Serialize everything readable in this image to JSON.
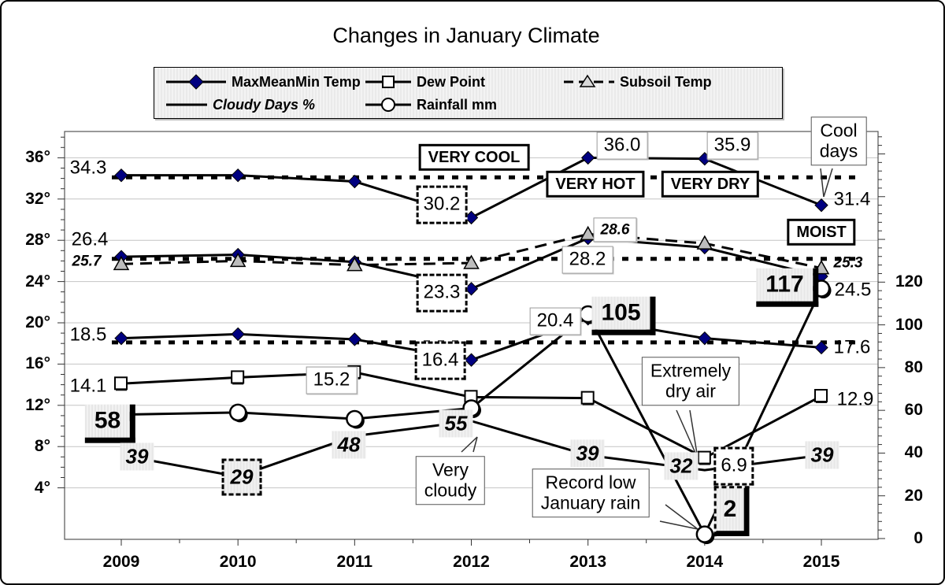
{
  "title": "Changes in January Climate",
  "legend": {
    "items": [
      {
        "label": "MaxMeanMin Temp",
        "marker": "diamond-icon"
      },
      {
        "label": "Dew Point",
        "marker": "square-icon"
      },
      {
        "label": "Subsoil Temp",
        "marker": "triangle-icon"
      },
      {
        "label": "Cloudy Days %",
        "marker": "line-icon"
      },
      {
        "label": "Rainfall mm",
        "marker": "circle-icon"
      }
    ]
  },
  "colors": {
    "max_temp_marker": "#000080",
    "subsoil_marker": "#bdbdbd",
    "line": "#000000",
    "grid": "#c4c4c4"
  },
  "chart_data": {
    "type": "line",
    "title": "Changes in January Climate",
    "x": [
      2009,
      2010,
      2011,
      2012,
      2013,
      2014,
      2015
    ],
    "left_axis": {
      "tick_labels": [
        "36°",
        "32°",
        "28°",
        "24°",
        "20°",
        "16°",
        "12°",
        "8°",
        "4°"
      ],
      "ticks": [
        36,
        32,
        28,
        24,
        20,
        16,
        12,
        8,
        4
      ],
      "unit": "°C"
    },
    "right_axis": {
      "tick_labels": [
        "120",
        "100",
        "80",
        "60",
        "40",
        "20",
        "0"
      ],
      "ticks": [
        120,
        100,
        80,
        60,
        40,
        20,
        0
      ],
      "unit": "% / mm"
    },
    "grid": "horizontal",
    "legend_position": "top",
    "series": [
      {
        "name": "Max Temp",
        "legend": "MaxMeanMin Temp",
        "axis": "left",
        "marker": "diamond",
        "dashed": false,
        "values": [
          34.3,
          34.3,
          33.7,
          30.2,
          36.0,
          35.9,
          31.4
        ]
      },
      {
        "name": "Mean Temp",
        "legend": "MaxMeanMin Temp",
        "axis": "left",
        "marker": "diamond",
        "dashed": false,
        "values": [
          26.4,
          26.6,
          25.9,
          23.3,
          28.2,
          27.3,
          24.5
        ]
      },
      {
        "name": "Min Temp",
        "legend": "MaxMeanMin Temp",
        "axis": "left",
        "marker": "diamond",
        "dashed": false,
        "values": [
          18.5,
          18.9,
          18.4,
          16.4,
          20.4,
          18.5,
          17.6
        ]
      },
      {
        "name": "Dew Point",
        "legend": "Dew Point",
        "axis": "left",
        "marker": "square",
        "dashed": false,
        "values": [
          14.1,
          14.7,
          15.2,
          12.8,
          12.7,
          6.9,
          12.9
        ]
      },
      {
        "name": "Subsoil Temp",
        "legend": "Subsoil Temp",
        "axis": "left",
        "marker": "triangle",
        "dashed": true,
        "values": [
          25.7,
          26.0,
          25.6,
          25.8,
          28.6,
          27.7,
          25.3
        ]
      },
      {
        "name": "Cloudy Days %",
        "legend": "Cloudy Days %",
        "axis": "right",
        "marker": "none",
        "dashed": false,
        "values": [
          39,
          29,
          48,
          55,
          39,
          32,
          39
        ]
      },
      {
        "name": "Rainfall mm",
        "legend": "Rainfall mm",
        "axis": "right",
        "marker": "circle",
        "dashed": false,
        "values": [
          58,
          59,
          56,
          61,
          105,
          2,
          117
        ]
      }
    ],
    "reference_lines": [
      {
        "axis": "left",
        "value": 34.1,
        "style": "bold-dotted"
      },
      {
        "axis": "left",
        "value": 26.2,
        "style": "bold-dotted"
      },
      {
        "axis": "left",
        "value": 18.1,
        "style": "bold-dotted"
      }
    ],
    "annotations": [
      {
        "text": "34.3",
        "cls": "plain",
        "x": 110,
        "y": 212
      },
      {
        "text": "26.4",
        "cls": "plain",
        "x": 112,
        "y": 303
      },
      {
        "text": "25.7",
        "cls": "small-bi",
        "x": 108,
        "y": 330
      },
      {
        "text": "18.5",
        "cls": "plain",
        "x": 110,
        "y": 424
      },
      {
        "text": "14.1",
        "cls": "plain",
        "x": 110,
        "y": 489
      },
      {
        "text": "58",
        "cls": "big-box",
        "x": 138,
        "y": 536
      },
      {
        "text": "39",
        "cls": "cloudy",
        "x": 172,
        "y": 578
      },
      {
        "text": "29",
        "cls": "cloudy cloudy-dashed",
        "x": 305,
        "y": 604
      },
      {
        "text": "48",
        "cls": "cloudy",
        "x": 441,
        "y": 563
      },
      {
        "text": "15.2",
        "cls": "white-box",
        "x": 419,
        "y": 481
      },
      {
        "text": "30.2",
        "cls": "dashed-box",
        "x": 559,
        "y": 258
      },
      {
        "text": "VERY COOL",
        "cls": "thick-box",
        "x": 600,
        "y": 198
      },
      {
        "text": "23.3",
        "cls": "dashed-box",
        "x": 559,
        "y": 370
      },
      {
        "text": "16.4",
        "cls": "dashed-box",
        "x": 557,
        "y": 456
      },
      {
        "text": "55",
        "cls": "cloudy",
        "x": 577,
        "y": 536
      },
      {
        "text": "Very\ncloudy",
        "cls": "callout",
        "x": 570,
        "y": 608,
        "pointer": [
          584,
          572,
          599,
          572,
          604,
          553
        ]
      },
      {
        "text": "VERY HOT",
        "cls": "thick-box",
        "x": 754,
        "y": 232
      },
      {
        "text": "36.0",
        "cls": "white-box",
        "x": 788,
        "y": 183
      },
      {
        "text": "28.6",
        "cls": "white-box bi",
        "x": 779,
        "y": 290
      },
      {
        "text": "28.2",
        "cls": "white-box",
        "x": 744,
        "y": 328
      },
      {
        "text": "20.4",
        "cls": "white-box",
        "x": 703,
        "y": 406
      },
      {
        "text": "105",
        "cls": "big-box",
        "x": 790,
        "y": 399
      },
      {
        "text": "39",
        "cls": "cloudy",
        "x": 744,
        "y": 574
      },
      {
        "text": "VERY DRY",
        "cls": "thick-box",
        "x": 900,
        "y": 232
      },
      {
        "text": "35.9",
        "cls": "white-box",
        "x": 928,
        "y": 183
      },
      {
        "text": "Extremely\ndry air",
        "cls": "callout",
        "x": 875,
        "y": 482,
        "pointer": [
          857,
          519,
          874,
          519,
          884,
          580
        ]
      },
      {
        "text": "32",
        "cls": "cloudy",
        "x": 863,
        "y": 590
      },
      {
        "text": "6.9",
        "cls": "dashed-box",
        "x": 930,
        "y": 590
      },
      {
        "text": "2",
        "cls": "big-box2",
        "x": 927,
        "y": 647
      },
      {
        "text": "Record low\nJanuary rain",
        "cls": "callout",
        "x": 748,
        "y": 624,
        "pointer": [
          843,
          639,
          836,
          660,
          884,
          670
        ]
      },
      {
        "text": "MOIST",
        "cls": "thick-box",
        "x": 1041,
        "y": 293
      },
      {
        "text": "Cool\ndays",
        "cls": "callout",
        "x": 1063,
        "y": 177,
        "pointer": [
          1040,
          212,
          1055,
          212,
          1044,
          248
        ]
      },
      {
        "text": "31.4",
        "cls": "plain",
        "x": 1080,
        "y": 252
      },
      {
        "text": "25.3",
        "cls": "small-bi",
        "x": 1075,
        "y": 332
      },
      {
        "text": "24.5",
        "cls": "plain",
        "x": 1081,
        "y": 367
      },
      {
        "text": "117",
        "cls": "big-box",
        "x": 998,
        "y": 363
      },
      {
        "text": "17.6",
        "cls": "plain",
        "x": 1080,
        "y": 440
      },
      {
        "text": "12.9",
        "cls": "plain",
        "x": 1084,
        "y": 506
      },
      {
        "text": "39",
        "cls": "cloudy",
        "x": 1042,
        "y": 576
      }
    ]
  }
}
